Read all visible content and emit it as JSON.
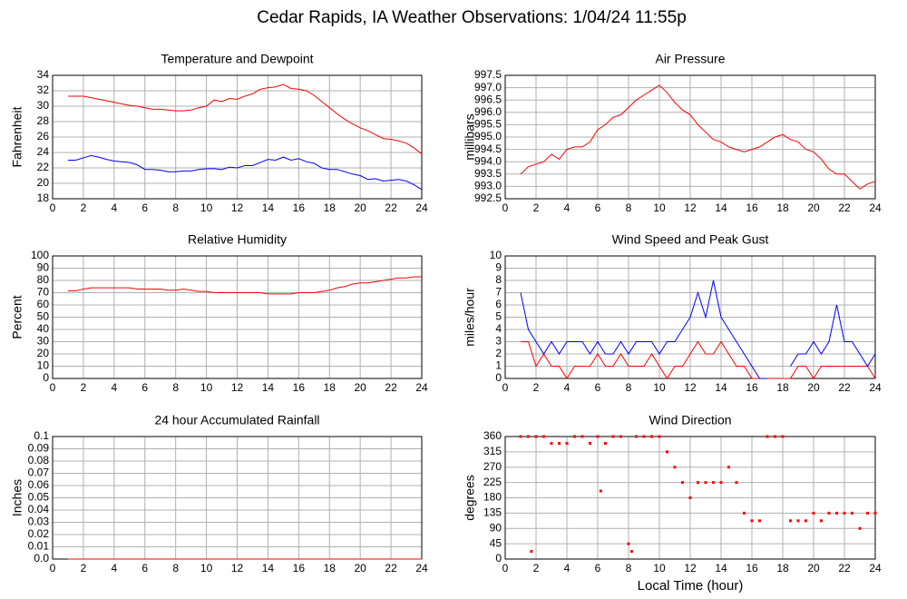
{
  "title": "Cedar Rapids, IA Weather Observations: 1/04/24 11:55p",
  "chart_data": [
    {
      "type": "line",
      "title": "Temperature and Dewpoint",
      "y_label": "Fahrenheit",
      "grid": true,
      "xlim": [
        0,
        24
      ],
      "xticks": [
        0,
        2,
        4,
        6,
        8,
        10,
        12,
        14,
        16,
        18,
        20,
        22,
        24
      ],
      "ylim": [
        18,
        34
      ],
      "yticks": [
        18,
        20,
        22,
        24,
        26,
        28,
        30,
        32,
        34
      ],
      "x": [
        1,
        1.5,
        2,
        2.5,
        3,
        3.5,
        4,
        4.5,
        5,
        5.5,
        6,
        6.5,
        7,
        7.5,
        8,
        8.5,
        9,
        9.5,
        10,
        10.5,
        11,
        11.5,
        12,
        12.5,
        13,
        13.5,
        14,
        14.5,
        15,
        15.5,
        16,
        16.5,
        17,
        17.5,
        18,
        18.5,
        19,
        19.5,
        20,
        20.5,
        21,
        21.5,
        22,
        22.5,
        23,
        23.5,
        24
      ],
      "series": [
        {
          "color": "#ff0000",
          "values": [
            31.3,
            31.3,
            31.3,
            31.1,
            30.9,
            30.7,
            30.5,
            30.3,
            30.1,
            30.0,
            29.8,
            29.6,
            29.6,
            29.5,
            29.4,
            29.4,
            29.5,
            29.8,
            30.0,
            30.8,
            30.6,
            31.0,
            30.9,
            31.3,
            31.6,
            32.2,
            32.4,
            32.5,
            32.8,
            32.3,
            32.2,
            32.0,
            31.4,
            30.6,
            29.8,
            29.0,
            28.3,
            27.7,
            27.2,
            26.8,
            26.3,
            25.8,
            25.7,
            25.5,
            25.2,
            24.6,
            23.8
          ]
        },
        {
          "color": "#0000ff",
          "values": [
            23.0,
            23.0,
            23.3,
            23.6,
            23.4,
            23.1,
            22.9,
            22.8,
            22.7,
            22.4,
            21.8,
            21.8,
            21.7,
            21.5,
            21.5,
            21.6,
            21.6,
            21.8,
            21.9,
            21.9,
            21.8,
            22.1,
            22.0,
            22.3,
            22.3,
            22.7,
            23.1,
            23.0,
            23.4,
            23.0,
            23.2,
            22.8,
            22.6,
            22.0,
            21.8,
            21.8,
            21.5,
            21.2,
            21.0,
            20.5,
            20.6,
            20.3,
            20.4,
            20.5,
            20.3,
            19.8,
            19.2
          ]
        }
      ]
    },
    {
      "type": "line",
      "title": "Air Pressure",
      "y_label": "millibars",
      "grid": true,
      "xlim": [
        0,
        24
      ],
      "xticks": [
        0,
        2,
        4,
        6,
        8,
        10,
        12,
        14,
        16,
        18,
        20,
        22,
        24
      ],
      "ylim": [
        992.5,
        997.5
      ],
      "yticks": [
        992.5,
        {
          "value": 993,
          "label": "993.0"
        },
        993.5,
        {
          "value": 994,
          "label": "994.0"
        },
        994.5,
        {
          "value": 995,
          "label": "995.0"
        },
        995.5,
        {
          "value": 996,
          "label": "996.0"
        },
        996.5,
        {
          "value": 997,
          "label": "997.0"
        },
        997.5
      ],
      "x": [
        1,
        1.5,
        2,
        2.5,
        3,
        3.5,
        4,
        4.5,
        5,
        5.5,
        6,
        6.5,
        7,
        7.5,
        8,
        8.5,
        9,
        9.5,
        10,
        10.5,
        11,
        11.5,
        12,
        12.5,
        13,
        13.5,
        14,
        14.5,
        15,
        15.5,
        16,
        16.5,
        17,
        17.5,
        18,
        18.5,
        19,
        19.5,
        20,
        20.5,
        21,
        21.5,
        22,
        22.5,
        23,
        23.5,
        24
      ],
      "series": [
        {
          "color": "#ff0000",
          "values": [
            993.5,
            993.8,
            993.9,
            994.0,
            994.3,
            994.1,
            994.5,
            994.6,
            994.6,
            994.8,
            995.3,
            995.5,
            995.8,
            995.9,
            996.2,
            996.5,
            996.7,
            996.9,
            997.1,
            996.8,
            996.4,
            996.1,
            995.9,
            995.5,
            995.2,
            994.9,
            994.8,
            994.6,
            994.5,
            994.4,
            994.5,
            994.6,
            994.8,
            995.0,
            995.1,
            994.9,
            994.8,
            994.5,
            994.4,
            994.1,
            993.7,
            993.5,
            993.5,
            993.2,
            992.9,
            993.1,
            993.2
          ]
        }
      ]
    },
    {
      "type": "line",
      "title": "Relative Humidity",
      "y_label": "Percent",
      "grid": true,
      "xlim": [
        0,
        24
      ],
      "xticks": [
        0,
        2,
        4,
        6,
        8,
        10,
        12,
        14,
        16,
        18,
        20,
        22,
        24
      ],
      "ylim": [
        0,
        100
      ],
      "yticks": [
        0,
        10,
        20,
        30,
        40,
        50,
        60,
        70,
        80,
        90,
        100
      ],
      "x": [
        1,
        1.5,
        2,
        2.5,
        3,
        3.5,
        4,
        4.5,
        5,
        5.5,
        6,
        6.5,
        7,
        7.5,
        8,
        8.5,
        9,
        9.5,
        10,
        10.5,
        11,
        11.5,
        12,
        12.5,
        13,
        13.5,
        14,
        14.5,
        15,
        15.5,
        16,
        16.5,
        17,
        17.5,
        18,
        18.5,
        19,
        19.5,
        20,
        20.5,
        21,
        21.5,
        22,
        22.5,
        23,
        23.5,
        24
      ],
      "series": [
        {
          "color": "#ff0000",
          "values": [
            71.5,
            71.5,
            73,
            74,
            74,
            74,
            74,
            74,
            74,
            73,
            73,
            73,
            73,
            72,
            72,
            73,
            72,
            71,
            71,
            70,
            70,
            70,
            70,
            70,
            70,
            70,
            69,
            69,
            69,
            69,
            70,
            70,
            70,
            71,
            72,
            74,
            75,
            77,
            78,
            78,
            79,
            80,
            81,
            82,
            82,
            83,
            83
          ]
        }
      ]
    },
    {
      "type": "line",
      "title": "Wind Speed and Peak Gust",
      "y_label": "miles/hour",
      "grid": true,
      "xlim": [
        0,
        24
      ],
      "xticks": [
        0,
        2,
        4,
        6,
        8,
        10,
        12,
        14,
        16,
        18,
        20,
        22,
        24
      ],
      "ylim": [
        0,
        10
      ],
      "yticks": [
        0,
        1,
        2,
        3,
        4,
        5,
        6,
        7,
        8,
        9,
        10
      ],
      "x": [
        1,
        1.5,
        2,
        2.5,
        3,
        3.5,
        4,
        4.5,
        5,
        5.5,
        6,
        6.5,
        7,
        7.5,
        8,
        8.5,
        9,
        9.5,
        10,
        10.5,
        11,
        11.5,
        12,
        12.5,
        13,
        13.5,
        14,
        14.5,
        15,
        15.5,
        16,
        16.5,
        17,
        17.5,
        18,
        18.5,
        19,
        19.5,
        20,
        20.5,
        21,
        21.5,
        22,
        22.5,
        23,
        23.5,
        24
      ],
      "series": [
        {
          "color": "#ff0000",
          "values": [
            3,
            3,
            1,
            2,
            1,
            1,
            0,
            1,
            1,
            1,
            2,
            1,
            1,
            2,
            1,
            1,
            1,
            2,
            1,
            0,
            1,
            1,
            2,
            3,
            2,
            2,
            3,
            2,
            1,
            1,
            0,
            0,
            0,
            0,
            0,
            0,
            1,
            1,
            0,
            1,
            1,
            1,
            1,
            1,
            1,
            1,
            0
          ]
        },
        {
          "color": "#0000ff",
          "values": [
            7,
            4,
            3,
            2,
            3,
            2,
            3,
            3,
            3,
            2,
            3,
            2,
            2,
            3,
            2,
            3,
            3,
            3,
            2,
            3,
            3,
            4,
            5,
            7,
            5,
            8,
            5,
            4,
            3,
            2,
            1,
            0,
            0,
            null,
            null,
            1,
            2,
            2,
            3,
            2,
            3,
            6,
            3,
            3,
            2,
            1,
            2
          ]
        }
      ]
    },
    {
      "type": "line",
      "title": "24 hour Accumulated Rainfall",
      "y_label": "Inches",
      "grid": true,
      "xlim": [
        0,
        24
      ],
      "xticks": [
        0,
        2,
        4,
        6,
        8,
        10,
        12,
        14,
        16,
        18,
        20,
        22,
        24
      ],
      "ylim": [
        0,
        0.1
      ],
      "yticks": [
        {
          "value": 0,
          "label": "0.0"
        },
        0.01,
        0.02,
        0.03,
        0.04,
        0.05,
        0.06,
        0.07,
        0.08,
        0.09,
        0.1
      ],
      "x": [
        1,
        24
      ],
      "series": [
        {
          "color": "#ff0000",
          "values": [
            0,
            0
          ]
        }
      ]
    },
    {
      "type": "scatter",
      "title": "Wind Direction",
      "y_label": "degrees",
      "x_label": "Local Time (hour)",
      "grid": true,
      "xlim": [
        0,
        24
      ],
      "xticks": [
        0,
        2,
        4,
        6,
        8,
        10,
        12,
        14,
        16,
        18,
        20,
        22,
        24
      ],
      "ylim": [
        0,
        360
      ],
      "yticks": [
        0,
        45,
        90,
        135,
        180,
        225,
        270,
        315,
        360
      ],
      "x": [
        1,
        1.5,
        1.7,
        2,
        2.5,
        3,
        3.5,
        4,
        4.5,
        5,
        5.5,
        6,
        6.2,
        6.5,
        7,
        7.5,
        8,
        8.2,
        8.5,
        9,
        9.5,
        10,
        10.5,
        11,
        11.5,
        12,
        12.5,
        13,
        13.5,
        14,
        14.5,
        15,
        15.5,
        16,
        16.5,
        17,
        17.5,
        18,
        18.5,
        19,
        19.5,
        20,
        20.5,
        21,
        21.5,
        22,
        22.5,
        23,
        23.5,
        24
      ],
      "series": [
        {
          "color": "#ff0000",
          "values": [
            360,
            360,
            22.5,
            360,
            360,
            340,
            340,
            340,
            360,
            360,
            340,
            360,
            200,
            340,
            360,
            360,
            45,
            22.5,
            360,
            360,
            360,
            360,
            315,
            270,
            225,
            180,
            225,
            225,
            225,
            225,
            270,
            225,
            135,
            112.5,
            112.5,
            360,
            360,
            360,
            112.5,
            112.5,
            112.5,
            135,
            112.5,
            135,
            135,
            135,
            135,
            90,
            135,
            135
          ]
        }
      ]
    }
  ]
}
